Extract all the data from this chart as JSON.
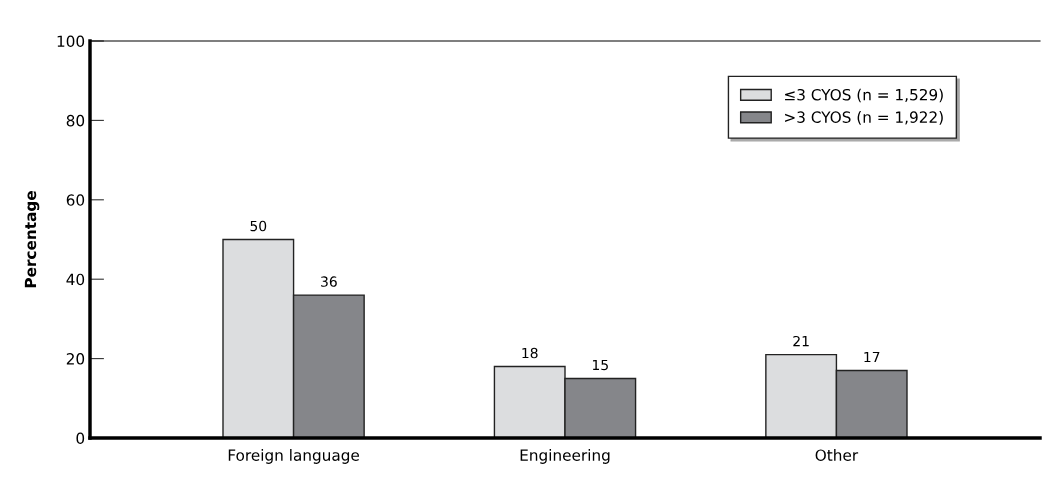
{
  "chart_data": {
    "type": "bar",
    "ylabel": "Percentage",
    "categories": [
      "Foreign language",
      "Engineering",
      "Other"
    ],
    "series": [
      {
        "name": "≤3 CYOS (n = 1,529)",
        "color": "#dcdddf",
        "values": [
          50,
          18,
          21
        ]
      },
      {
        "name": ">3 CYOS (n = 1,922)",
        "color": "#85868a",
        "values": [
          36,
          15,
          17
        ]
      }
    ],
    "ylim": [
      0,
      100
    ],
    "yticks": [
      0,
      20,
      40,
      60,
      80,
      100
    ],
    "data_labels": true,
    "legend": "top right",
    "grid": false
  }
}
